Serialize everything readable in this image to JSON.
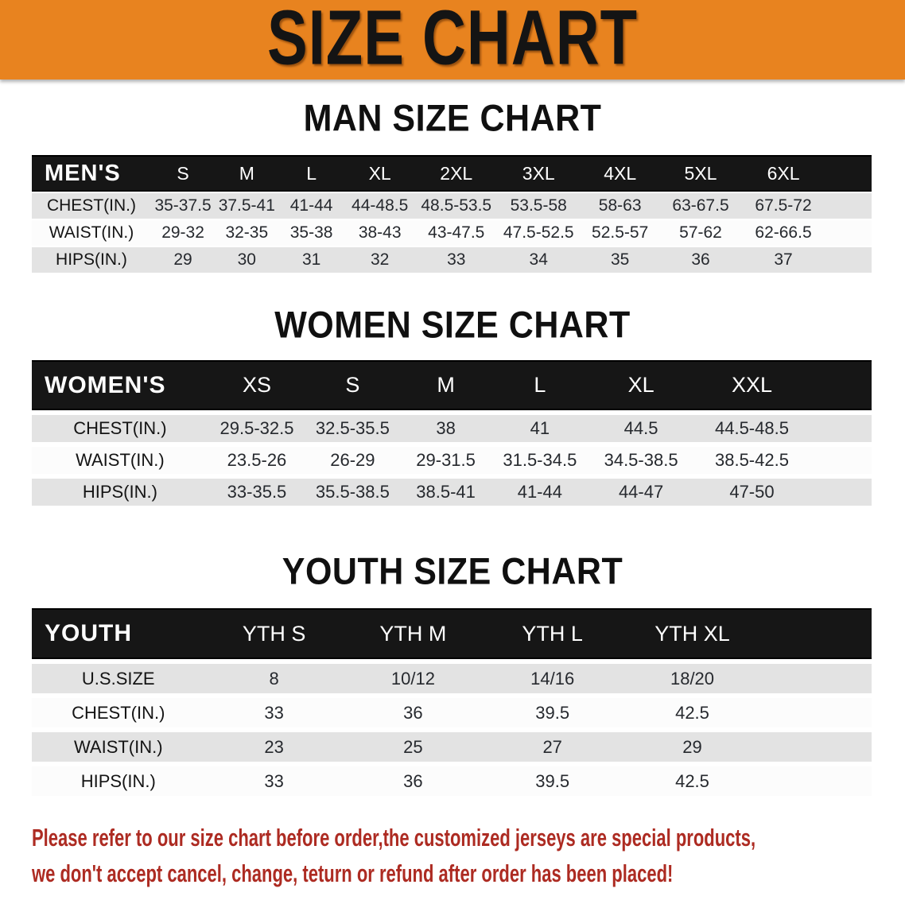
{
  "banner": {
    "title": "SIZE CHART"
  },
  "colors": {
    "banner_bg": "#E8831F",
    "table_header_bg": "#161616",
    "row_shaded": "#E3E3E3",
    "row_plain": "#FCFCFC",
    "note_text": "#AD2B22"
  },
  "sections": [
    {
      "heading": "MAN SIZE CHART",
      "table": {
        "title": "MEN'S",
        "columns": [
          "S",
          "M",
          "L",
          "XL",
          "2XL",
          "3XL",
          "4XL",
          "5XL",
          "6XL"
        ],
        "rows": [
          {
            "label": "CHEST(IN.)",
            "values": [
              "35-37.5",
              "37.5-41",
              "41-44",
              "44-48.5",
              "48.5-53.5",
              "53.5-58",
              "58-63",
              "63-67.5",
              "67.5-72"
            ]
          },
          {
            "label": "WAIST(IN.)",
            "values": [
              "29-32",
              "32-35",
              "35-38",
              "38-43",
              "43-47.5",
              "47.5-52.5",
              "52.5-57",
              "57-62",
              "62-66.5"
            ]
          },
          {
            "label": "HIPS(IN.)",
            "values": [
              "29",
              "30",
              "31",
              "32",
              "33",
              "34",
              "35",
              "36",
              "37"
            ]
          }
        ]
      }
    },
    {
      "heading": "WOMEN SIZE CHART",
      "table": {
        "title": "WOMEN'S",
        "columns": [
          "XS",
          "S",
          "M",
          "L",
          "XL",
          "XXL"
        ],
        "rows": [
          {
            "label": "CHEST(IN.)",
            "values": [
              "29.5-32.5",
              "32.5-35.5",
              "38",
              "41",
              "44.5",
              "44.5-48.5"
            ]
          },
          {
            "label": "WAIST(IN.)",
            "values": [
              "23.5-26",
              "26-29",
              "29-31.5",
              "31.5-34.5",
              "34.5-38.5",
              "38.5-42.5"
            ]
          },
          {
            "label": "HIPS(IN.)",
            "values": [
              "33-35.5",
              "35.5-38.5",
              "38.5-41",
              "41-44",
              "44-47",
              "47-50"
            ]
          }
        ]
      }
    },
    {
      "heading": "YOUTH SIZE CHART",
      "table": {
        "title": "YOUTH",
        "columns": [
          "YTH S",
          "YTH M",
          "YTH L",
          "YTH XL"
        ],
        "rows": [
          {
            "label": "U.S.SIZE",
            "values": [
              "8",
              "10/12",
              "14/16",
              "18/20"
            ]
          },
          {
            "label": "CHEST(IN.)",
            "values": [
              "33",
              "36",
              "39.5",
              "42.5"
            ]
          },
          {
            "label": "WAIST(IN.)",
            "values": [
              "23",
              "25",
              "27",
              "29"
            ]
          },
          {
            "label": "HIPS(IN.)",
            "values": [
              "33",
              "36",
              "39.5",
              "42.5"
            ]
          }
        ]
      }
    }
  ],
  "note": {
    "line1": "Please refer to our size chart before order,the customized jerseys are special products,",
    "line2": "we don't accept cancel, change, teturn or refund after order has been placed!"
  }
}
